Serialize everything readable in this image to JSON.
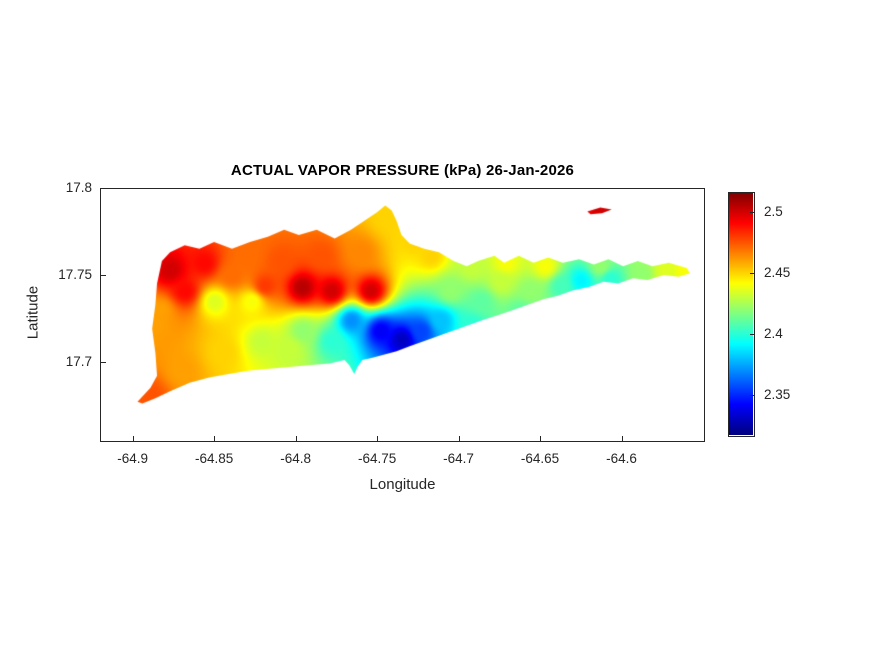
{
  "title": "ACTUAL VAPOR PRESSURE (kPa) 26-Jan-2026",
  "chart_data": {
    "type": "heatmap",
    "title": "ACTUAL VAPOR PRESSURE (kPa) 26-Jan-2026",
    "xlabel": "Longitude",
    "ylabel": "Latitude",
    "xlim": [
      -64.92,
      -64.55
    ],
    "ylim": [
      17.655,
      17.8
    ],
    "x_ticks": [
      -64.9,
      -64.85,
      -64.8,
      -64.75,
      -64.7,
      -64.65,
      -64.6
    ],
    "x_tick_labels": [
      "-64.9",
      "-64.85",
      "-64.8",
      "-64.75",
      "-64.7",
      "-64.65",
      "-64.6"
    ],
    "y_ticks": [
      17.7,
      17.75,
      17.8
    ],
    "y_tick_labels": [
      "17.7",
      "17.75",
      "17.8"
    ],
    "grid": false,
    "colormap": "jet",
    "clim": [
      2.317,
      2.516
    ],
    "colorbar_ticks": [
      2.35,
      2.4,
      2.45,
      2.5
    ],
    "colorbar_tick_labels": [
      "2.35",
      "2.4",
      "2.45",
      "2.5"
    ],
    "interpolation": "idw",
    "idw_power": 2.8,
    "stations": [
      [
        -64.877,
        17.753,
        2.5
      ],
      [
        -64.868,
        17.741,
        2.49
      ],
      [
        -64.883,
        17.73,
        2.46
      ],
      [
        -64.856,
        17.757,
        2.49
      ],
      [
        -64.839,
        17.75,
        2.47
      ],
      [
        -64.85,
        17.735,
        2.435
      ],
      [
        -64.827,
        17.735,
        2.44
      ],
      [
        -64.83,
        17.761,
        2.47
      ],
      [
        -64.809,
        17.758,
        2.475
      ],
      [
        -64.819,
        17.744,
        2.48
      ],
      [
        -64.796,
        17.743,
        2.505
      ],
      [
        -64.778,
        17.741,
        2.5
      ],
      [
        -64.784,
        17.761,
        2.475
      ],
      [
        -64.76,
        17.763,
        2.465
      ],
      [
        -64.754,
        17.741,
        2.5
      ],
      [
        -64.743,
        17.783,
        2.45
      ],
      [
        -64.766,
        17.724,
        2.37
      ],
      [
        -64.748,
        17.718,
        2.34
      ],
      [
        -64.735,
        17.713,
        2.33
      ],
      [
        -64.723,
        17.718,
        2.355
      ],
      [
        -64.711,
        17.724,
        2.38
      ],
      [
        -64.778,
        17.712,
        2.4
      ],
      [
        -64.796,
        17.718,
        2.42
      ],
      [
        -64.821,
        17.712,
        2.43
      ],
      [
        -64.845,
        17.706,
        2.45
      ],
      [
        -64.87,
        17.695,
        2.46
      ],
      [
        -64.889,
        17.681,
        2.475
      ],
      [
        -64.886,
        17.722,
        2.46
      ],
      [
        -64.804,
        17.708,
        2.43
      ],
      [
        -64.705,
        17.741,
        2.42
      ],
      [
        -64.686,
        17.735,
        2.41
      ],
      [
        -64.674,
        17.746,
        2.43
      ],
      [
        -64.656,
        17.741,
        2.42
      ],
      [
        -64.637,
        17.744,
        2.405
      ],
      [
        -64.625,
        17.747,
        2.39
      ],
      [
        -64.607,
        17.748,
        2.4
      ],
      [
        -64.588,
        17.751,
        2.42
      ],
      [
        -64.573,
        17.753,
        2.435
      ],
      [
        -64.561,
        17.753,
        2.44
      ],
      [
        -64.647,
        17.755,
        2.44
      ],
      [
        -64.671,
        17.757,
        2.44
      ],
      [
        -64.692,
        17.755,
        2.43
      ],
      [
        -64.613,
        17.755,
        2.42
      ],
      [
        -64.717,
        17.761,
        2.45
      ],
      [
        -64.726,
        17.77,
        2.45
      ],
      [
        -64.692,
        17.721,
        2.4
      ],
      [
        -64.662,
        17.729,
        2.41
      ],
      [
        -64.612,
        17.787,
        2.5
      ]
    ],
    "island_outline": [
      [
        -64.897,
        17.677
      ],
      [
        -64.889,
        17.685
      ],
      [
        -64.885,
        17.692
      ],
      [
        -64.886,
        17.705
      ],
      [
        -64.888,
        17.719
      ],
      [
        -64.886,
        17.733
      ],
      [
        -64.885,
        17.745
      ],
      [
        -64.882,
        17.758
      ],
      [
        -64.877,
        17.763
      ],
      [
        -64.868,
        17.767
      ],
      [
        -64.859,
        17.765
      ],
      [
        -64.85,
        17.769
      ],
      [
        -64.839,
        17.765
      ],
      [
        -64.828,
        17.769
      ],
      [
        -64.817,
        17.772
      ],
      [
        -64.807,
        17.776
      ],
      [
        -64.798,
        17.773
      ],
      [
        -64.787,
        17.776
      ],
      [
        -64.776,
        17.771
      ],
      [
        -64.766,
        17.776
      ],
      [
        -64.758,
        17.781
      ],
      [
        -64.75,
        17.786
      ],
      [
        -64.745,
        17.79
      ],
      [
        -64.741,
        17.787
      ],
      [
        -64.738,
        17.781
      ],
      [
        -64.735,
        17.773
      ],
      [
        -64.73,
        17.768
      ],
      [
        -64.721,
        17.765
      ],
      [
        -64.712,
        17.763
      ],
      [
        -64.703,
        17.758
      ],
      [
        -64.695,
        17.755
      ],
      [
        -64.688,
        17.758
      ],
      [
        -64.678,
        17.761
      ],
      [
        -64.672,
        17.757
      ],
      [
        -64.663,
        17.761
      ],
      [
        -64.654,
        17.757
      ],
      [
        -64.645,
        17.76
      ],
      [
        -64.636,
        17.757
      ],
      [
        -64.626,
        17.759
      ],
      [
        -64.617,
        17.756
      ],
      [
        -64.608,
        17.759
      ],
      [
        -64.599,
        17.755
      ],
      [
        -64.59,
        17.758
      ],
      [
        -64.581,
        17.755
      ],
      [
        -64.571,
        17.757
      ],
      [
        -64.56,
        17.754
      ],
      [
        -64.558,
        17.751
      ],
      [
        -64.565,
        17.749
      ],
      [
        -64.574,
        17.75
      ],
      [
        -64.584,
        17.747
      ],
      [
        -64.593,
        17.748
      ],
      [
        -64.602,
        17.745
      ],
      [
        -64.611,
        17.746
      ],
      [
        -64.62,
        17.743
      ],
      [
        -64.63,
        17.741
      ],
      [
        -64.639,
        17.738
      ],
      [
        -64.648,
        17.736
      ],
      [
        -64.657,
        17.733
      ],
      [
        -64.666,
        17.73
      ],
      [
        -64.675,
        17.727
      ],
      [
        -64.685,
        17.724
      ],
      [
        -64.694,
        17.721
      ],
      [
        -64.703,
        17.718
      ],
      [
        -64.712,
        17.715
      ],
      [
        -64.721,
        17.712
      ],
      [
        -64.73,
        17.709
      ],
      [
        -64.738,
        17.706
      ],
      [
        -64.746,
        17.704
      ],
      [
        -64.754,
        17.702
      ],
      [
        -64.759,
        17.701
      ],
      [
        -64.762,
        17.697
      ],
      [
        -64.764,
        17.693
      ],
      [
        -64.767,
        17.698
      ],
      [
        -64.77,
        17.701
      ],
      [
        -64.779,
        17.699
      ],
      [
        -64.792,
        17.698
      ],
      [
        -64.804,
        17.697
      ],
      [
        -64.816,
        17.696
      ],
      [
        -64.828,
        17.695
      ],
      [
        -64.841,
        17.693
      ],
      [
        -64.853,
        17.691
      ],
      [
        -64.865,
        17.688
      ],
      [
        -64.877,
        17.683
      ],
      [
        -64.886,
        17.679
      ],
      [
        -64.894,
        17.676
      ]
    ],
    "buck_island_outline": [
      [
        -64.621,
        17.7865
      ],
      [
        -64.613,
        17.7888
      ],
      [
        -64.606,
        17.7876
      ],
      [
        -64.612,
        17.7855
      ],
      [
        -64.619,
        17.7849
      ]
    ]
  }
}
